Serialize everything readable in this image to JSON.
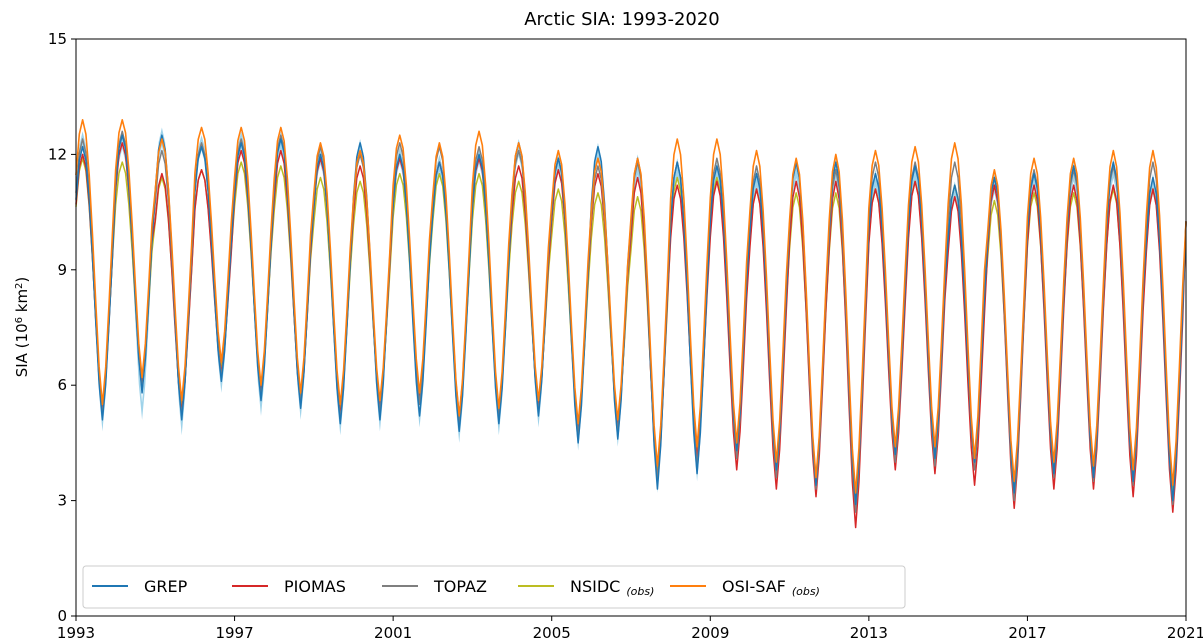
{
  "chart_data": {
    "type": "line",
    "title": "Arctic SIA: 1993-2020",
    "ylabel_main": "SIA (10",
    "ylabel_sup1": "6",
    "ylabel_mid": " km",
    "ylabel_sup2": "2",
    "ylabel_end": ")",
    "xlim": [
      1993,
      2021
    ],
    "ylim": [
      0,
      15
    ],
    "x_ticks": [
      "1993",
      "1997",
      "2001",
      "2005",
      "2009",
      "2013",
      "2017",
      "2021"
    ],
    "y_ticks": [
      "0",
      "3",
      "6",
      "9",
      "12",
      "15"
    ],
    "grid": false,
    "legend_position": "lower-left",
    "x_start": 1993.0,
    "x_step_years": 0.0833333,
    "series": [
      {
        "name": "GREP",
        "color": "#1f77b4",
        "band_color": "#8ecbe6",
        "max": [
          12.2,
          12.5,
          12.5,
          12.2,
          12.3,
          12.4,
          12.0,
          12.3,
          12.0,
          11.8,
          12.0,
          12.3,
          11.9,
          12.2,
          11.9,
          11.8,
          11.7,
          11.5,
          11.8,
          11.8,
          11.5,
          11.7,
          11.2,
          11.4,
          11.5,
          11.7,
          11.8,
          11.4
        ],
        "min": [
          5.1,
          5.8,
          5.1,
          6.1,
          5.6,
          5.4,
          5.0,
          5.1,
          5.2,
          4.8,
          5.0,
          5.2,
          4.5,
          4.6,
          3.3,
          3.7,
          4.3,
          3.8,
          3.4,
          2.9,
          4.2,
          4.1,
          4.0,
          3.2,
          3.7,
          3.6,
          3.5,
          3.0
        ],
        "band_max": [
          12.6,
          12.6,
          12.7,
          12.5,
          12.6,
          12.6,
          12.2,
          12.4,
          12.2,
          12.0,
          12.2,
          12.4,
          12.0,
          12.3,
          12.0,
          11.9,
          11.8,
          11.6,
          11.9,
          11.9,
          11.6,
          11.8,
          11.3,
          11.5,
          11.6,
          11.8,
          11.9,
          11.5
        ],
        "band_min": [
          4.8,
          5.1,
          4.7,
          5.8,
          5.2,
          5.1,
          4.7,
          4.8,
          4.9,
          4.5,
          4.7,
          4.9,
          4.3,
          4.4,
          3.2,
          3.5,
          4.2,
          3.7,
          3.3,
          2.8,
          4.1,
          4.0,
          3.9,
          3.1,
          3.6,
          3.5,
          3.4,
          2.9
        ]
      },
      {
        "name": "PIOMAS",
        "color": "#d62728",
        "max": [
          12.0,
          12.3,
          11.5,
          11.6,
          12.1,
          12.1,
          11.9,
          11.7,
          11.9,
          11.8,
          11.9,
          11.7,
          11.6,
          11.5,
          11.4,
          11.2,
          11.3,
          11.1,
          11.3,
          11.3,
          11.1,
          11.3,
          10.9,
          11.2,
          11.2,
          11.2,
          11.2,
          11.1
        ],
        "min": [
          5.3,
          6.0,
          5.3,
          6.3,
          5.8,
          5.5,
          5.2,
          5.4,
          5.7,
          5.2,
          5.3,
          5.4,
          4.8,
          4.9,
          3.5,
          4.1,
          3.8,
          3.3,
          3.1,
          2.3,
          3.8,
          3.7,
          3.4,
          2.8,
          3.3,
          3.3,
          3.1,
          2.7
        ]
      },
      {
        "name": "TOPAZ",
        "color": "#7f7f7f",
        "max": [
          12.4,
          12.6,
          12.1,
          12.3,
          12.4,
          12.5,
          12.2,
          12.0,
          12.3,
          12.2,
          12.2,
          12.1,
          11.9,
          11.7,
          11.8,
          11.8,
          11.9,
          11.7,
          11.8,
          11.6,
          11.8,
          11.8,
          11.8,
          11.4,
          11.6,
          11.6,
          11.7,
          11.8
        ],
        "min": [
          5.2,
          5.9,
          5.2,
          6.2,
          5.7,
          5.5,
          5.1,
          5.3,
          5.5,
          5.0,
          5.2,
          5.3,
          4.7,
          4.8,
          3.5,
          3.9,
          4.1,
          3.6,
          3.3,
          2.7,
          4.0,
          3.9,
          3.8,
          3.0,
          3.6,
          3.5,
          3.4,
          2.9
        ]
      },
      {
        "name": "NSIDC",
        "name_sub": "(obs)",
        "color": "#bcbd22",
        "max": [
          11.9,
          11.8,
          11.4,
          11.6,
          11.8,
          11.7,
          11.4,
          11.3,
          11.5,
          11.5,
          11.5,
          11.3,
          11.1,
          11.0,
          10.9,
          11.4,
          11.4,
          11.1,
          11.0,
          11.0,
          11.1,
          11.3,
          11.2,
          10.8,
          11.0,
          11.0,
          11.1,
          11.1
        ],
        "min": [
          5.4,
          6.1,
          5.5,
          6.5,
          5.9,
          5.7,
          5.4,
          5.5,
          5.7,
          5.1,
          5.3,
          5.5,
          4.9,
          5.0,
          3.8,
          4.3,
          4.4,
          3.9,
          3.5,
          3.1,
          4.3,
          4.3,
          4.0,
          3.4,
          3.9,
          3.8,
          3.7,
          3.3
        ]
      },
      {
        "name": "OSI-SAF",
        "name_sub": "(obs)",
        "color": "#ff7f0e",
        "max": [
          12.9,
          12.9,
          12.4,
          12.7,
          12.7,
          12.7,
          12.3,
          12.1,
          12.5,
          12.3,
          12.6,
          12.3,
          12.1,
          11.9,
          11.9,
          12.4,
          12.4,
          12.1,
          11.9,
          12.0,
          12.1,
          12.2,
          12.3,
          11.6,
          11.9,
          11.9,
          12.1,
          12.1
        ],
        "min": [
          5.5,
          6.2,
          5.6,
          6.6,
          6.0,
          5.8,
          5.5,
          5.6,
          5.8,
          5.2,
          5.4,
          5.6,
          5.0,
          5.1,
          3.9,
          4.4,
          4.5,
          4.0,
          3.6,
          3.2,
          4.4,
          4.4,
          4.1,
          3.5,
          4.0,
          3.9,
          3.8,
          3.4
        ]
      }
    ]
  }
}
